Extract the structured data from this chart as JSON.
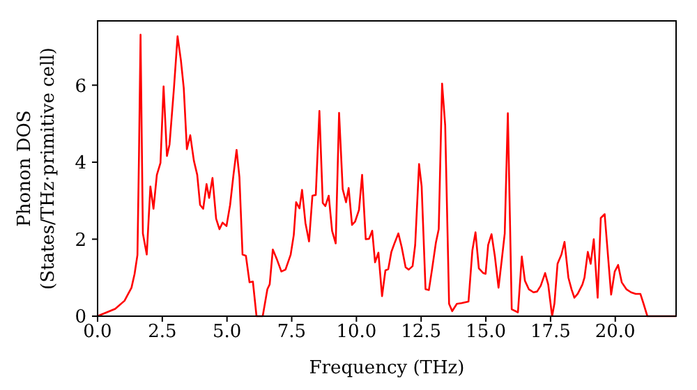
{
  "chart_data": {
    "type": "line",
    "xlabel": "Frequency (THz)",
    "ylabel": "Phonon DOS\n(States/THz·primitive cell)",
    "x": [
      0,
      0.14,
      0.68,
      1.04,
      1.31,
      1.43,
      1.54,
      1.6,
      1.66,
      1.75,
      1.9,
      2.04,
      2.16,
      2.29,
      2.43,
      2.55,
      2.68,
      2.78,
      2.95,
      3.09,
      3.22,
      3.33,
      3.45,
      3.58,
      3.72,
      3.85,
      3.96,
      4.08,
      4.21,
      4.31,
      4.44,
      4.58,
      4.71,
      4.83,
      4.98,
      5.12,
      5.25,
      5.37,
      5.48,
      5.6,
      5.73,
      5.87,
      6.0,
      6.14,
      6.38,
      6.56,
      6.65,
      6.77,
      6.92,
      7.1,
      7.26,
      7.46,
      7.58,
      7.67,
      7.8,
      7.9,
      8.03,
      8.17,
      8.3,
      8.43,
      8.57,
      8.7,
      8.8,
      8.93,
      9.06,
      9.2,
      9.33,
      9.47,
      9.6,
      9.7,
      9.83,
      9.95,
      10.1,
      10.22,
      10.36,
      10.49,
      10.61,
      10.72,
      10.85,
      10.99,
      11.12,
      11.23,
      11.35,
      11.48,
      11.62,
      11.75,
      11.9,
      12.02,
      12.17,
      12.27,
      12.42,
      12.52,
      12.67,
      12.8,
      12.92,
      13.07,
      13.18,
      13.31,
      13.43,
      13.58,
      13.7,
      13.88,
      14.06,
      14.33,
      14.48,
      14.6,
      14.73,
      14.9,
      14.99,
      15.09,
      15.22,
      15.35,
      15.49,
      15.62,
      15.73,
      15.85,
      16.0,
      16.24,
      16.39,
      16.51,
      16.66,
      16.84,
      16.98,
      17.12,
      17.29,
      17.41,
      17.56,
      17.65,
      17.77,
      17.92,
      18.04,
      18.19,
      18.31,
      18.42,
      18.55,
      18.73,
      18.81,
      18.94,
      19.05,
      19.17,
      19.32,
      19.44,
      19.59,
      19.84,
      19.98,
      20.11,
      20.25,
      20.43,
      20.61,
      20.79,
      20.97,
      21.09,
      21.24,
      22.35
    ],
    "series": [
      {
        "color": "#ff0000",
        "values": [
          0,
          0.04,
          0.19,
          0.4,
          0.74,
          1.1,
          1.59,
          4.2,
          7.31,
          2.15,
          1.6,
          3.37,
          2.79,
          3.67,
          3.98,
          5.97,
          4.16,
          4.46,
          5.92,
          7.27,
          6.64,
          5.92,
          4.34,
          4.7,
          4.04,
          3.67,
          2.89,
          2.79,
          3.43,
          3.07,
          3.59,
          2.53,
          2.26,
          2.43,
          2.34,
          2.89,
          3.67,
          4.32,
          3.61,
          1.6,
          1.57,
          0.88,
          0.9,
          0,
          0,
          0.7,
          0.83,
          1.73,
          1.49,
          1.16,
          1.21,
          1.6,
          2.11,
          2.96,
          2.8,
          3.28,
          2.42,
          1.94,
          3.13,
          3.15,
          5.33,
          2.94,
          2.86,
          3.13,
          2.22,
          1.89,
          5.28,
          3.3,
          2.96,
          3.33,
          2.37,
          2.46,
          2.76,
          3.67,
          2.0,
          2.01,
          2.22,
          1.4,
          1.65,
          0.52,
          1.19,
          1.22,
          1.67,
          1.91,
          2.15,
          1.79,
          1.27,
          1.21,
          1.3,
          1.85,
          3.95,
          3.37,
          0.7,
          0.68,
          1.21,
          1.91,
          2.26,
          6.04,
          4.95,
          0.32,
          0.13,
          0.32,
          0.34,
          0.38,
          1.71,
          2.18,
          1.24,
          1.12,
          1.1,
          1.85,
          2.13,
          1.55,
          0.74,
          1.49,
          2.15,
          5.27,
          0.18,
          0.1,
          1.55,
          0.92,
          0.7,
          0.62,
          0.64,
          0.79,
          1.12,
          0.82,
          0,
          0.33,
          1.36,
          1.6,
          1.93,
          1.0,
          0.7,
          0.48,
          0.58,
          0.82,
          1.0,
          1.67,
          1.36,
          2.0,
          0.48,
          2.55,
          2.65,
          0.56,
          1.16,
          1.33,
          0.88,
          0.7,
          0.62,
          0.58,
          0.58,
          0.33,
          0,
          0
        ]
      }
    ],
    "xlim": [
      0,
      22.35
    ],
    "ylim": [
      0,
      7.67
    ],
    "xticks": [
      {
        "value": 0,
        "label": "0.0"
      },
      {
        "value": 2.5,
        "label": "2.5"
      },
      {
        "value": 5,
        "label": "5.0"
      },
      {
        "value": 7.5,
        "label": "7.5"
      },
      {
        "value": 10,
        "label": "10.0"
      },
      {
        "value": 12.5,
        "label": "12.5"
      },
      {
        "value": 15,
        "label": "15.0"
      },
      {
        "value": 17.5,
        "label": "17.5"
      },
      {
        "value": 20,
        "label": "20.0"
      }
    ],
    "yticks": [
      0,
      2,
      4,
      6
    ],
    "grid": false,
    "legend": false,
    "marker": "none",
    "line_style": "solid"
  }
}
